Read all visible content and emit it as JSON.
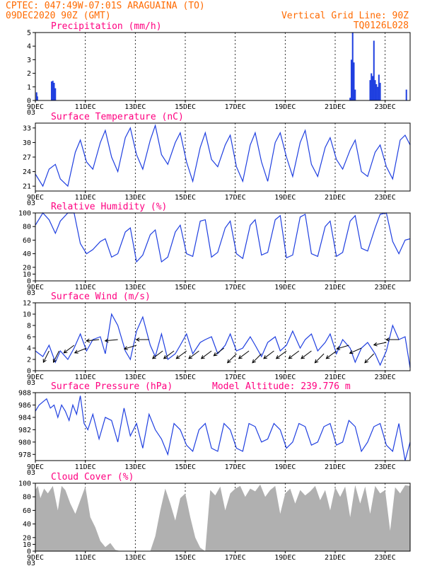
{
  "header": {
    "line1": "CPTEC:  047:49W-07:01S  ARAGUAINA (TO)",
    "line2": "09DEC2020 90Z (GMT)",
    "vgrid": "Vertical Grid Line: 90Z",
    "code": "TQ0126L028"
  },
  "colors": {
    "header": "#ff6a00",
    "title": "#ff0080",
    "series": "#1f3fe0",
    "cloud": "#b0b0b0",
    "arrow": "#000000"
  },
  "chart_data": [
    {
      "type": "bar",
      "title": "Precipitation (mm/h)",
      "x_ticks": [
        "9DEC",
        "11DEC",
        "13DEC",
        "15DEC",
        "17DEC",
        "19DEC",
        "21DEC",
        "23DEC"
      ],
      "x_first_extra": "03",
      "x_range_days": [
        0,
        15
      ],
      "ylim": [
        0,
        5
      ],
      "y_ticks": [
        0,
        1,
        2,
        3,
        4,
        5
      ],
      "grid_x": true,
      "bars": [
        {
          "x": 0.05,
          "y": 0.6
        },
        {
          "x": 0.08,
          "y": 0.3
        },
        {
          "x": 0.65,
          "y": 1.4
        },
        {
          "x": 0.7,
          "y": 1.45
        },
        {
          "x": 0.75,
          "y": 1.3
        },
        {
          "x": 0.8,
          "y": 0.9
        },
        {
          "x": 12.6,
          "y": 0.2
        },
        {
          "x": 12.65,
          "y": 3.0
        },
        {
          "x": 12.7,
          "y": 5.0
        },
        {
          "x": 12.75,
          "y": 2.8
        },
        {
          "x": 12.8,
          "y": 0.8
        },
        {
          "x": 13.4,
          "y": 1.5
        },
        {
          "x": 13.45,
          "y": 2.0
        },
        {
          "x": 13.5,
          "y": 1.8
        },
        {
          "x": 13.55,
          "y": 4.4
        },
        {
          "x": 13.6,
          "y": 1.5
        },
        {
          "x": 13.65,
          "y": 1.2
        },
        {
          "x": 13.7,
          "y": 1.0
        },
        {
          "x": 13.75,
          "y": 1.9
        },
        {
          "x": 13.8,
          "y": 1.3
        },
        {
          "x": 14.85,
          "y": 0.8
        }
      ]
    },
    {
      "type": "line",
      "title": "Surface Temperature (nC)",
      "x_ticks": [
        "9DEC",
        "11DEC",
        "13DEC",
        "15DEC",
        "17DEC",
        "19DEC",
        "21DEC",
        "23DEC"
      ],
      "x_first_extra": "03",
      "x_range_days": [
        0,
        15
      ],
      "ylim": [
        20,
        34
      ],
      "y_ticks": [
        21,
        24,
        27,
        30,
        33
      ],
      "grid_x": true,
      "x": [
        0,
        0.3,
        0.55,
        0.8,
        1.0,
        1.3,
        1.6,
        1.8,
        2.05,
        2.3,
        2.6,
        2.8,
        3.05,
        3.3,
        3.6,
        3.8,
        4.05,
        4.3,
        4.6,
        4.8,
        5.05,
        5.3,
        5.6,
        5.8,
        6.05,
        6.3,
        6.6,
        6.8,
        7.05,
        7.3,
        7.6,
        7.8,
        8.05,
        8.3,
        8.6,
        8.8,
        9.05,
        9.3,
        9.6,
        9.8,
        10.05,
        10.3,
        10.6,
        10.8,
        11.05,
        11.3,
        11.6,
        11.8,
        12.05,
        12.3,
        12.6,
        12.8,
        13.05,
        13.3,
        13.6,
        13.8,
        14.05,
        14.3,
        14.6,
        14.8,
        15.0
      ],
      "y": [
        23.5,
        21.0,
        24.5,
        25.5,
        22.5,
        21.0,
        28.0,
        30.5,
        26.0,
        24.5,
        30.0,
        32.5,
        27.0,
        24.0,
        31.0,
        33.0,
        27.5,
        24.5,
        30.5,
        33.5,
        27.5,
        25.5,
        30.0,
        32.0,
        26.0,
        22.0,
        29.0,
        32.0,
        26.5,
        25.0,
        29.5,
        31.5,
        25.0,
        22.0,
        29.5,
        32.0,
        26.0,
        22.0,
        30.0,
        32.0,
        27.0,
        23.0,
        30.0,
        32.5,
        25.5,
        23.0,
        29.0,
        31.0,
        26.5,
        24.5,
        28.5,
        30.5,
        24.0,
        23.0,
        28.0,
        29.5,
        25.0,
        22.5,
        30.5,
        31.5,
        29.5
      ]
    },
    {
      "type": "line",
      "title": "Relative Humidity (%)",
      "x_ticks": [
        "9DEC",
        "11DEC",
        "13DEC",
        "15DEC",
        "17DEC",
        "19DEC",
        "21DEC",
        "23DEC"
      ],
      "x_first_extra": "03",
      "x_range_days": [
        0,
        15
      ],
      "ylim": [
        0,
        100
      ],
      "y_ticks": [
        0,
        10,
        20,
        40,
        60,
        80,
        100
      ],
      "grid_x": true,
      "x": [
        0,
        0.3,
        0.55,
        0.8,
        1.0,
        1.3,
        1.55,
        1.8,
        2.05,
        2.3,
        2.6,
        2.8,
        3.05,
        3.3,
        3.6,
        3.8,
        4.05,
        4.3,
        4.6,
        4.8,
        5.05,
        5.3,
        5.6,
        5.8,
        6.05,
        6.3,
        6.6,
        6.8,
        7.05,
        7.3,
        7.6,
        7.8,
        8.05,
        8.3,
        8.6,
        8.8,
        9.05,
        9.3,
        9.6,
        9.8,
        10.05,
        10.3,
        10.6,
        10.8,
        11.05,
        11.3,
        11.6,
        11.8,
        12.05,
        12.3,
        12.6,
        12.8,
        13.05,
        13.3,
        13.6,
        13.8,
        14.05,
        14.3,
        14.55,
        14.8,
        15.0
      ],
      "y": [
        82,
        100,
        90,
        70,
        88,
        100,
        100,
        55,
        40,
        46,
        58,
        62,
        35,
        40,
        72,
        78,
        28,
        38,
        68,
        75,
        28,
        35,
        72,
        82,
        40,
        36,
        88,
        90,
        35,
        42,
        78,
        88,
        40,
        33,
        82,
        90,
        38,
        42,
        90,
        96,
        34,
        38,
        94,
        98,
        40,
        36,
        80,
        88,
        36,
        42,
        88,
        96,
        48,
        44,
        78,
        98,
        100,
        58,
        40,
        60,
        62
      ]
    },
    {
      "type": "line",
      "title": "Surface Wind (m/s)",
      "x_ticks": [
        "9DEC",
        "11DEC",
        "13DEC",
        "15DEC",
        "17DEC",
        "19DEC",
        "21DEC",
        "23DEC"
      ],
      "x_first_extra": "03",
      "x_range_days": [
        0,
        15
      ],
      "ylim": [
        0,
        12
      ],
      "y_ticks": [
        0,
        2,
        4,
        6,
        8,
        10,
        12
      ],
      "grid_x": true,
      "x": [
        0,
        0.3,
        0.55,
        0.8,
        1.0,
        1.3,
        1.55,
        1.8,
        2.05,
        2.3,
        2.6,
        2.8,
        3.05,
        3.3,
        3.6,
        3.8,
        4.05,
        4.3,
        4.6,
        4.8,
        5.05,
        5.3,
        5.6,
        5.8,
        6.05,
        6.3,
        6.6,
        6.8,
        7.05,
        7.3,
        7.6,
        7.8,
        8.05,
        8.3,
        8.6,
        8.8,
        9.05,
        9.3,
        9.6,
        9.8,
        10.05,
        10.3,
        10.6,
        10.8,
        11.05,
        11.3,
        11.6,
        11.8,
        12.05,
        12.3,
        12.6,
        12.8,
        13.05,
        13.3,
        13.6,
        13.8,
        14.05,
        14.3,
        14.55,
        14.8,
        15.0
      ],
      "y": [
        3.5,
        2.5,
        4.5,
        1.5,
        3.5,
        2.0,
        4.0,
        6.5,
        3.5,
        5.5,
        6.0,
        3.0,
        10.0,
        8.0,
        3.5,
        2.0,
        7.0,
        9.5,
        4.5,
        2.5,
        6.5,
        2.0,
        3.0,
        4.5,
        6.5,
        3.0,
        5.0,
        5.5,
        6.0,
        3.0,
        4.5,
        6.5,
        3.5,
        4.0,
        6.0,
        4.5,
        2.5,
        5.0,
        6.0,
        3.5,
        4.5,
        7.0,
        4.0,
        5.5,
        6.5,
        3.5,
        5.0,
        6.5,
        3.0,
        5.5,
        4.0,
        1.5,
        4.0,
        5.0,
        3.0,
        1.0,
        3.5,
        8.0,
        5.5,
        6.0,
        0.5
      ],
      "barbs": [
        {
          "x": 0.55,
          "speed": 3.5,
          "dx": 0.5,
          "dy": 1
        },
        {
          "x": 0.95,
          "speed": 3.5,
          "dx": 0.5,
          "dy": 1
        },
        {
          "x": 1.55,
          "speed": 4.5,
          "dx": 0.8,
          "dy": 0.6
        },
        {
          "x": 2.05,
          "speed": 4.0,
          "dx": 1,
          "dy": 0.4
        },
        {
          "x": 2.55,
          "speed": 5.5,
          "dx": 1,
          "dy": 0.1
        },
        {
          "x": 3.3,
          "speed": 5.5,
          "dx": 1,
          "dy": 0.1
        },
        {
          "x": 4.05,
          "speed": 4.5,
          "dx": 1,
          "dy": 0.3
        },
        {
          "x": 4.55,
          "speed": 5.5,
          "dx": 1,
          "dy": 0
        },
        {
          "x": 5.1,
          "speed": 3.5,
          "dx": 0.8,
          "dy": 0.6
        },
        {
          "x": 5.55,
          "speed": 3.5,
          "dx": 0.8,
          "dy": 0.6
        },
        {
          "x": 6.05,
          "speed": 3.5,
          "dx": 0.8,
          "dy": 0.6
        },
        {
          "x": 6.55,
          "speed": 3.5,
          "dx": 0.8,
          "dy": 0.6
        },
        {
          "x": 7.05,
          "speed": 3.5,
          "dx": 0.8,
          "dy": 0.6
        },
        {
          "x": 7.55,
          "speed": 4.0,
          "dx": 0.8,
          "dy": 0.6
        },
        {
          "x": 8.05,
          "speed": 3.0,
          "dx": 0.7,
          "dy": 0.7
        },
        {
          "x": 8.55,
          "speed": 3.5,
          "dx": 0.8,
          "dy": 0.6
        },
        {
          "x": 9.05,
          "speed": 3.0,
          "dx": 0.7,
          "dy": 0.7
        },
        {
          "x": 9.55,
          "speed": 3.5,
          "dx": 0.8,
          "dy": 0.6
        },
        {
          "x": 10.05,
          "speed": 3.5,
          "dx": 0.8,
          "dy": 0.6
        },
        {
          "x": 10.55,
          "speed": 3.5,
          "dx": 0.8,
          "dy": 0.6
        },
        {
          "x": 11.05,
          "speed": 3.5,
          "dx": 0.8,
          "dy": 0.6
        },
        {
          "x": 11.55,
          "speed": 3.0,
          "dx": 0.7,
          "dy": 0.7
        },
        {
          "x": 12.05,
          "speed": 3.5,
          "dx": 0.8,
          "dy": 0.6
        },
        {
          "x": 12.55,
          "speed": 4.5,
          "dx": 1,
          "dy": 0.3
        },
        {
          "x": 13.05,
          "speed": 4.0,
          "dx": 0.9,
          "dy": 0.4
        },
        {
          "x": 13.55,
          "speed": 3.0,
          "dx": 0.7,
          "dy": 0.7
        },
        {
          "x": 14.05,
          "speed": 5.0,
          "dx": 1,
          "dy": 0.2
        },
        {
          "x": 14.55,
          "speed": 5.5,
          "dx": 1,
          "dy": 0
        }
      ]
    },
    {
      "type": "line",
      "title": "Surface Pressure (hPa)",
      "annotation": "Model Altitude: 239.776 m",
      "x_ticks": [
        "9DEC",
        "11DEC",
        "13DEC",
        "15DEC",
        "17DEC",
        "19DEC",
        "21DEC",
        "23DEC"
      ],
      "x_first_extra": "03",
      "x_range_days": [
        0,
        15
      ],
      "ylim": [
        977,
        988
      ],
      "y_ticks": [
        978,
        980,
        982,
        984,
        986,
        988
      ],
      "grid_x": true,
      "x": [
        0,
        0.15,
        0.3,
        0.45,
        0.6,
        0.75,
        0.9,
        1.05,
        1.2,
        1.35,
        1.5,
        1.65,
        1.8,
        1.95,
        2.1,
        2.3,
        2.55,
        2.8,
        3.05,
        3.3,
        3.55,
        3.8,
        4.05,
        4.3,
        4.55,
        4.8,
        5.05,
        5.3,
        5.55,
        5.8,
        6.05,
        6.3,
        6.55,
        6.8,
        7.05,
        7.3,
        7.55,
        7.8,
        8.05,
        8.3,
        8.55,
        8.8,
        9.05,
        9.3,
        9.55,
        9.8,
        10.05,
        10.3,
        10.55,
        10.8,
        11.05,
        11.3,
        11.55,
        11.8,
        12.05,
        12.3,
        12.55,
        12.8,
        13.05,
        13.3,
        13.55,
        13.8,
        14.05,
        14.3,
        14.55,
        14.8,
        15.0
      ],
      "y": [
        985,
        986,
        986.5,
        987,
        985.5,
        986,
        984,
        986,
        985,
        983.5,
        986,
        984.5,
        987.5,
        983,
        982,
        984.5,
        980.5,
        984,
        983.5,
        980,
        985.5,
        981,
        983,
        979,
        984.5,
        982,
        980.5,
        978,
        983,
        982,
        979.5,
        978.5,
        982,
        983,
        979,
        978.5,
        983,
        982,
        979,
        978.5,
        983,
        982.5,
        980,
        980.5,
        983,
        982,
        979,
        980,
        983,
        982.5,
        979.5,
        980,
        982.5,
        983,
        979.5,
        980,
        983.5,
        982.5,
        978.5,
        980,
        982.5,
        983,
        979.5,
        978.5,
        983,
        977,
        980
      ]
    },
    {
      "type": "area",
      "title": "Cloud Cover (%)",
      "x_ticks": [
        "9DEC",
        "11DEC",
        "13DEC",
        "15DEC",
        "17DEC",
        "19DEC",
        "21DEC",
        "23DEC"
      ],
      "x_first_extra": "03",
      "x_range_days": [
        0,
        15
      ],
      "ylim": [
        0,
        100
      ],
      "y_ticks": [
        0,
        10,
        20,
        40,
        60,
        80,
        100
      ],
      "grid_x": true,
      "x": [
        0,
        0.1,
        0.2,
        0.35,
        0.5,
        0.7,
        0.9,
        1.05,
        1.2,
        1.4,
        1.6,
        1.8,
        2.0,
        2.2,
        2.4,
        2.6,
        2.8,
        3.0,
        3.2,
        3.4,
        3.6,
        3.8,
        4.0,
        4.2,
        4.4,
        4.6,
        4.8,
        5.0,
        5.2,
        5.4,
        5.6,
        5.8,
        6.0,
        6.2,
        6.4,
        6.6,
        6.8,
        7.0,
        7.2,
        7.4,
        7.6,
        7.8,
        8.0,
        8.2,
        8.4,
        8.6,
        8.8,
        9.0,
        9.2,
        9.4,
        9.6,
        9.8,
        10.0,
        10.2,
        10.4,
        10.6,
        10.8,
        11.0,
        11.2,
        11.4,
        11.6,
        11.8,
        12.0,
        12.2,
        12.4,
        12.6,
        12.8,
        13.0,
        13.2,
        13.4,
        13.6,
        13.8,
        14.0,
        14.2,
        14.4,
        14.6,
        14.8,
        15.0
      ],
      "y": [
        90,
        96,
        78,
        92,
        85,
        96,
        60,
        96,
        90,
        70,
        55,
        75,
        95,
        50,
        35,
        15,
        6,
        12,
        2,
        0,
        0,
        0,
        0,
        0,
        0,
        0,
        22,
        60,
        92,
        70,
        45,
        78,
        85,
        50,
        20,
        5,
        0,
        90,
        82,
        95,
        60,
        85,
        92,
        96,
        80,
        92,
        88,
        98,
        80,
        90,
        96,
        55,
        85,
        92,
        70,
        90,
        82,
        88,
        96,
        75,
        90,
        60,
        94,
        80,
        95,
        50,
        97,
        70,
        95,
        55,
        96,
        85,
        90,
        30,
        94,
        85,
        97,
        96
      ]
    }
  ]
}
